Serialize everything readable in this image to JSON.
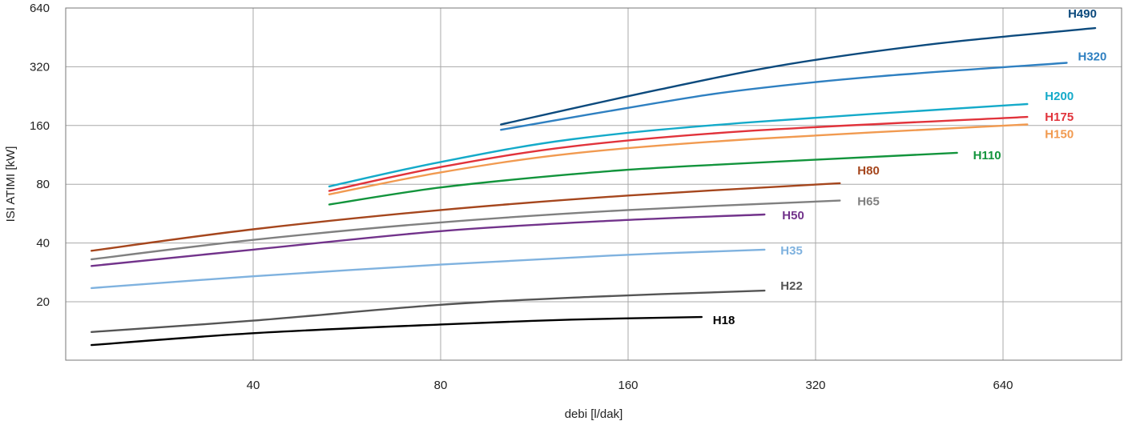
{
  "chart_data": {
    "type": "line",
    "xlabel": "debi [l/dak]",
    "ylabel": "ISI ATIMI [kW]",
    "xscale": "log2",
    "yscale": "log2",
    "xlim": [
      20,
      1000
    ],
    "ylim": [
      10,
      640
    ],
    "xticks": [
      40,
      80,
      160,
      320,
      640
    ],
    "yticks": [
      20,
      40,
      80,
      160,
      320,
      640
    ],
    "grid": true,
    "series": [
      {
        "name": "H18",
        "color": "#000000",
        "x": [
          22,
          40,
          80,
          130,
          210
        ],
        "y": [
          12,
          13.8,
          15.3,
          16.2,
          16.7
        ]
      },
      {
        "name": "H22",
        "color": "#555555",
        "x": [
          22,
          40,
          80,
          140,
          265
        ],
        "y": [
          14,
          16,
          19.3,
          21.2,
          22.8
        ]
      },
      {
        "name": "H35",
        "color": "#7fb2df",
        "x": [
          22,
          40,
          80,
          150,
          265
        ],
        "y": [
          23.5,
          27,
          31,
          34.5,
          37
        ]
      },
      {
        "name": "H50",
        "color": "#72338b",
        "x": [
          22,
          40,
          80,
          150,
          265
        ],
        "y": [
          30.5,
          37,
          46,
          52,
          56
        ]
      },
      {
        "name": "H65",
        "color": "#808080",
        "x": [
          22,
          40,
          80,
          160,
          350
        ],
        "y": [
          33,
          41.5,
          51,
          59,
          66
        ]
      },
      {
        "name": "H80",
        "color": "#a5461d",
        "x": [
          22,
          40,
          80,
          160,
          350
        ],
        "y": [
          36.5,
          47,
          59,
          70,
          81
        ]
      },
      {
        "name": "H110",
        "color": "#12943c",
        "x": [
          53,
          80,
          130,
          200,
          540
        ],
        "y": [
          63,
          77,
          90,
          99,
          116
        ]
      },
      {
        "name": "H150",
        "color": "#f19a50",
        "x": [
          53,
          80,
          130,
          250,
          700
        ],
        "y": [
          71,
          92,
          115,
          136,
          162
        ]
      },
      {
        "name": "H175",
        "color": "#e1333b",
        "x": [
          53,
          80,
          130,
          250,
          700
        ],
        "y": [
          74,
          98,
          125,
          150,
          177
        ]
      },
      {
        "name": "H200",
        "color": "#14aac9",
        "x": [
          53,
          80,
          130,
          250,
          700
        ],
        "y": [
          78,
          104,
          136,
          166,
          206
        ]
      },
      {
        "name": "H320",
        "color": "#2f80c1",
        "x": [
          100,
          180,
          250,
          400,
          810
        ],
        "y": [
          152,
          210,
          245,
          285,
          335
        ]
      },
      {
        "name": "H490",
        "color": "#0c4a7d",
        "x": [
          100,
          180,
          290,
          500,
          900
        ],
        "y": [
          162,
          245,
          330,
          420,
          505
        ]
      }
    ]
  }
}
